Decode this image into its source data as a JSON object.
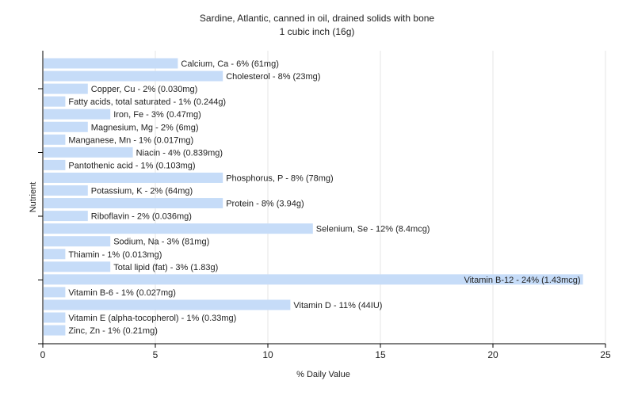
{
  "chart_data": {
    "type": "bar",
    "orientation": "horizontal",
    "title": "Sardine, Atlantic, canned in oil, drained solids with bone",
    "subtitle": "1 cubic inch (16g)",
    "xlabel": "% Daily Value",
    "ylabel": "Nutrient",
    "xlim": [
      0,
      25
    ],
    "xticks": [
      0,
      5,
      10,
      15,
      20,
      25
    ],
    "grid": true,
    "bar_color": "#c6dcf8",
    "categories": [
      "Calcium, Ca - 6% (61mg)",
      "Cholesterol - 8% (23mg)",
      "Copper, Cu - 2% (0.030mg)",
      "Fatty acids, total saturated - 1% (0.244g)",
      "Iron, Fe - 3% (0.47mg)",
      "Magnesium, Mg - 2% (6mg)",
      "Manganese, Mn - 1% (0.017mg)",
      "Niacin - 4% (0.839mg)",
      "Pantothenic acid - 1% (0.103mg)",
      "Phosphorus, P - 8% (78mg)",
      "Potassium, K - 2% (64mg)",
      "Protein - 8% (3.94g)",
      "Riboflavin - 2% (0.036mg)",
      "Selenium, Se - 12% (8.4mcg)",
      "Sodium, Na - 3% (81mg)",
      "Thiamin - 1% (0.013mg)",
      "Total lipid (fat) - 3% (1.83g)",
      "Vitamin B-12 - 24% (1.43mcg)",
      "Vitamin B-6 - 1% (0.027mg)",
      "Vitamin D - 11% (44IU)",
      "Vitamin E (alpha-tocopherol) - 1% (0.33mg)",
      "Zinc, Zn - 1% (0.21mg)"
    ],
    "values": [
      6,
      8,
      2,
      1,
      3,
      2,
      1,
      4,
      1,
      8,
      2,
      8,
      2,
      12,
      3,
      1,
      3,
      24,
      1,
      11,
      1,
      1
    ]
  }
}
